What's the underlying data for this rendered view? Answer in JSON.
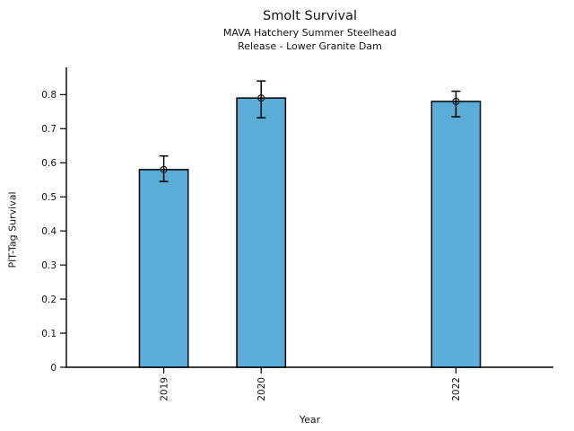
{
  "chart_data": {
    "type": "bar",
    "title": "Smolt Survival",
    "subtitle_line1": "MAVA Hatchery Summer Steelhead",
    "subtitle_line2": "Release - Lower Granite Dam",
    "xlabel": "Year",
    "ylabel": "PIT-Tag Survival",
    "x": [
      2019,
      2020,
      2022
    ],
    "x_labels": [
      "2019",
      "2020",
      "2022"
    ],
    "values": [
      0.58,
      0.79,
      0.78
    ],
    "error_low": [
      0.545,
      0.732,
      0.735
    ],
    "error_high": [
      0.62,
      0.84,
      0.81
    ],
    "xlim": [
      2018,
      2023
    ],
    "ylim": [
      0,
      0.88
    ],
    "ytick_values": [
      0,
      0.1,
      0.2,
      0.3,
      0.4,
      0.5,
      0.6,
      0.7,
      0.8
    ],
    "ytick_labels": [
      "0",
      "0.1",
      "0.2",
      "0.3",
      "0.4",
      "0.5",
      "0.6",
      "0.7",
      "0.8"
    ],
    "bar_width_years": 0.5,
    "bar_fill": "#5BACD6",
    "bar_edge": "#000000",
    "errorbar_color": "#000000",
    "marker": "open-circle",
    "grid": false,
    "legend": null,
    "spines": [
      "left",
      "bottom"
    ]
  }
}
